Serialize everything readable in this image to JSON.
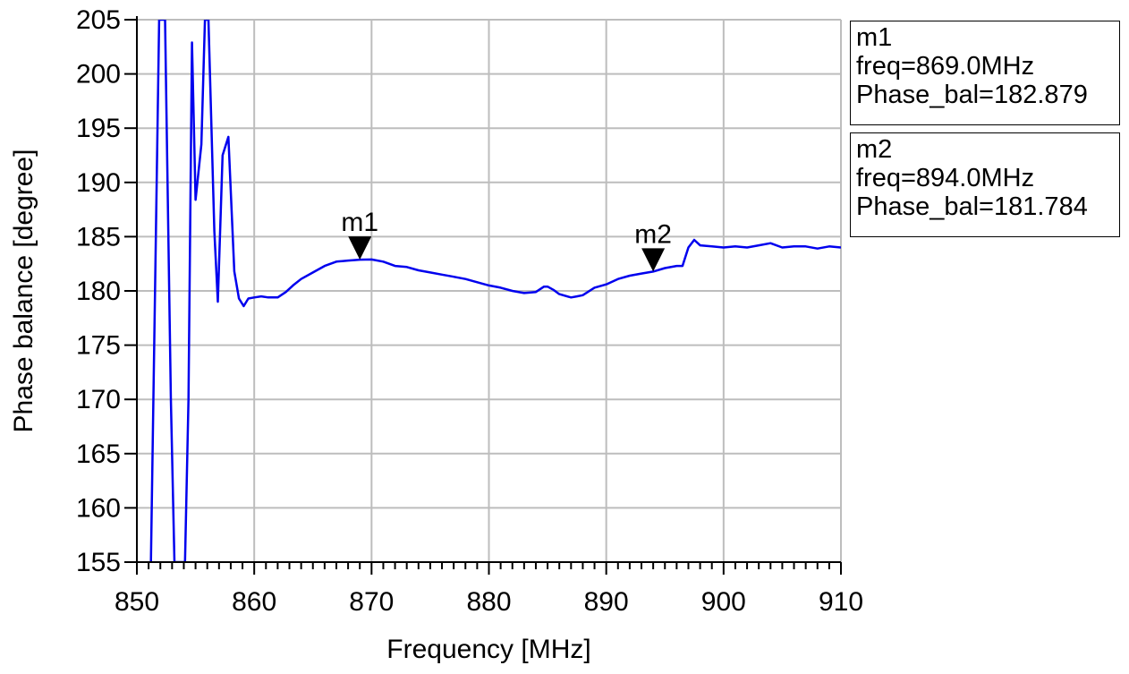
{
  "chart_data": {
    "type": "line",
    "title": "",
    "xlabel": "Frequency [MHz]",
    "ylabel": "Phase balance [degree]",
    "xlim": [
      850,
      910
    ],
    "ylim": [
      155,
      205
    ],
    "x_ticks": [
      "850",
      "860",
      "870",
      "880",
      "890",
      "900",
      "910"
    ],
    "y_ticks": [
      "155",
      "160",
      "165",
      "170",
      "175",
      "180",
      "185",
      "190",
      "195",
      "200",
      "205"
    ],
    "grid": true,
    "line_color": "#0000ee",
    "series": [
      {
        "x": [
          851.2,
          851.9,
          852.4,
          852.9,
          853.2,
          853.6,
          854.1,
          854.4,
          854.7,
          855.0,
          855.5,
          855.8,
          856.1,
          856.6,
          856.9,
          857.3,
          857.8,
          858.3,
          858.7,
          859.1,
          859.5,
          860.0,
          860.6,
          861.2,
          862.0,
          862.7,
          863.3,
          864.0,
          865.0,
          866.0,
          867.0,
          868.0,
          869.0,
          870.0,
          871.0,
          872.0,
          873.0,
          874.0,
          875.0,
          876.0,
          877.0,
          878.0,
          879.0,
          880.0,
          881.0,
          882.0,
          883.0,
          884.0,
          884.7,
          885.0,
          885.5,
          886.0,
          887.0,
          887.5,
          888.0,
          889.0,
          890.0,
          891.0,
          892.0,
          893.0,
          894.0,
          895.0,
          896.0,
          896.5,
          897.0,
          897.5,
          898.0,
          899.0,
          900.0,
          901.0,
          902.0,
          903.0,
          904.0,
          905.0,
          906.0,
          907.0,
          908.0,
          909.0,
          910.0
        ],
        "y": [
          155,
          205,
          205,
          170,
          155,
          155,
          155,
          170,
          202.9,
          188.4,
          193.5,
          205,
          205,
          185.5,
          179.0,
          192.5,
          194.2,
          181.8,
          179.3,
          178.6,
          179.3,
          179.4,
          179.5,
          179.4,
          179.4,
          179.9,
          180.5,
          181.1,
          181.7,
          182.3,
          182.7,
          182.8,
          182.879,
          182.9,
          182.7,
          182.3,
          182.2,
          181.9,
          181.7,
          181.5,
          181.3,
          181.1,
          180.8,
          180.5,
          180.3,
          180.0,
          179.8,
          179.9,
          180.4,
          180.4,
          180.1,
          179.7,
          179.4,
          179.5,
          179.6,
          180.3,
          180.6,
          181.1,
          181.4,
          181.6,
          181.784,
          182.1,
          182.3,
          182.3,
          184.0,
          184.7,
          184.2,
          184.1,
          184.0,
          184.1,
          184.0,
          184.2,
          184.4,
          184.0,
          184.1,
          184.1,
          183.9,
          184.1,
          184.0
        ]
      }
    ],
    "markers": [
      {
        "label": "m1",
        "freq": 869.0,
        "phase": 182.879
      },
      {
        "label": "m2",
        "freq": 894.0,
        "phase": 181.784
      }
    ]
  },
  "marker_boxes": {
    "m1": {
      "name": "m1",
      "freq": "freq=869.0MHz",
      "phase": "Phase_bal=182.879"
    },
    "m2": {
      "name": "m2",
      "freq": "freq=894.0MHz",
      "phase": "Phase_bal=181.784"
    }
  }
}
